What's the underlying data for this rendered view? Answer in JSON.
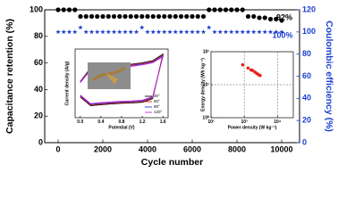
{
  "chart_data": [
    {
      "type": "scatter",
      "xlabel": "Cycle number",
      "ylabel": "Capacitance retention (%)",
      "y2label": "Coulombic efficiency (%)",
      "x": [
        0,
        250,
        500,
        750,
        1000,
        1250,
        1500,
        1750,
        2000,
        2250,
        2500,
        2750,
        3000,
        3250,
        3500,
        3750,
        4000,
        4250,
        4500,
        4750,
        5000,
        5250,
        5500,
        5750,
        6000,
        6250,
        6500,
        6750,
        7000,
        7250,
        7500,
        7750,
        8000,
        8250,
        8500,
        8750,
        9000,
        9250,
        9500,
        9750,
        10000
      ],
      "series": [
        {
          "name": "Capacitance retention",
          "color": "#000000",
          "marker": "circle",
          "values": [
            100,
            100,
            100,
            100,
            95,
            95,
            95,
            95,
            95,
            95,
            95,
            95,
            95,
            95,
            95,
            95,
            95,
            95,
            95,
            95,
            95,
            95,
            95,
            95,
            95,
            95,
            95,
            100,
            100,
            100,
            100,
            100,
            100,
            100,
            95,
            95,
            94,
            94,
            93,
            93,
            92
          ]
        },
        {
          "name": "Coulombic efficiency",
          "color": "#1a3fd0",
          "marker": "star",
          "axis": "y2",
          "values": [
            100,
            100,
            100,
            100,
            104,
            100,
            100,
            100,
            100,
            100,
            100,
            100,
            100,
            100,
            100,
            104,
            100,
            100,
            100,
            100,
            100,
            100,
            100,
            100,
            100,
            100,
            100,
            104,
            100,
            100,
            100,
            100,
            100,
            100,
            100,
            100,
            100,
            100,
            100,
            100,
            100
          ]
        }
      ],
      "annotations": [
        "92%",
        "100%"
      ],
      "xlim": [
        -600,
        10800
      ],
      "ylim": [
        0,
        100
      ],
      "y2lim": [
        0,
        120
      ],
      "xticks": [
        0,
        2000,
        4000,
        6000,
        8000,
        10000
      ],
      "yticks": [
        0,
        20,
        40,
        60,
        80,
        100
      ],
      "y2ticks": [
        0,
        20,
        40,
        60,
        80,
        100,
        120
      ],
      "y2color": "#1a3fd0"
    },
    {
      "type": "line",
      "xlabel": "Potential (V)",
      "ylabel": "Current density (A/g)",
      "x": [
        0,
        0.2,
        0.4,
        0.6,
        0.8,
        1.0,
        1.2,
        1.4,
        1.6,
        1.4,
        1.2,
        1.0,
        0.8,
        0.6,
        0.4,
        0.2,
        0
      ],
      "series": [
        {
          "name": "30°",
          "color": "#000000",
          "values": [
            0.05,
            0.45,
            0.5,
            0.52,
            0.54,
            0.56,
            0.6,
            0.66,
            0.85,
            -0.45,
            -0.55,
            -0.57,
            -0.58,
            -0.6,
            -0.62,
            -0.65,
            -0.4
          ]
        },
        {
          "name": "60°",
          "color": "#e8201a",
          "values": [
            0.04,
            0.43,
            0.48,
            0.5,
            0.52,
            0.54,
            0.58,
            0.64,
            0.82,
            -0.43,
            -0.53,
            -0.55,
            -0.56,
            -0.58,
            -0.6,
            -0.63,
            -0.38
          ]
        },
        {
          "name": "90°",
          "color": "#1a3fd0",
          "values": [
            0.03,
            0.41,
            0.46,
            0.48,
            0.5,
            0.52,
            0.56,
            0.62,
            0.8,
            -0.41,
            -0.51,
            -0.53,
            -0.54,
            -0.56,
            -0.58,
            -0.61,
            -0.36
          ]
        },
        {
          "name": "120°",
          "color": "#d020d0",
          "values": [
            0.02,
            0.39,
            0.44,
            0.46,
            0.48,
            0.5,
            0.54,
            0.6,
            0.78,
            -0.39,
            -0.49,
            -0.51,
            -0.52,
            -0.54,
            -0.56,
            -0.59,
            -0.34
          ]
        }
      ],
      "legend": "lower right",
      "xlim": [
        -0.1,
        1.7
      ],
      "ylim": [
        -1,
        1
      ],
      "xticks": [
        {
          "value": 0,
          "label": "0.0"
        },
        0.4,
        0.8,
        1.2,
        1.6
      ]
    },
    {
      "type": "scatter",
      "log_scale": true,
      "grid": true,
      "xlabel": "Power density (W kg⁻¹)",
      "ylabel": "Energy density (Wh kg⁻¹)",
      "x": [
        900,
        1300,
        1600,
        1800,
        2100,
        2400,
        2700,
        3000
      ],
      "series": [
        {
          "name": "Ragone",
          "color": "#e8201a",
          "marker": "circle",
          "values": [
            40,
            32,
            28,
            27,
            24,
            22,
            20,
            19
          ]
        }
      ],
      "xlim": [
        100,
        30000
      ],
      "ylim": [
        1,
        100
      ],
      "xticks": [
        {
          "value": 100,
          "label": "10²"
        },
        {
          "value": 1000,
          "label": "10³"
        },
        {
          "value": 10000,
          "label": "10⁴"
        }
      ],
      "yticks": [
        {
          "value": 1,
          "label": "10⁰"
        },
        {
          "value": 10,
          "label": "10¹"
        },
        {
          "value": 100,
          "label": "10²"
        }
      ]
    }
  ]
}
